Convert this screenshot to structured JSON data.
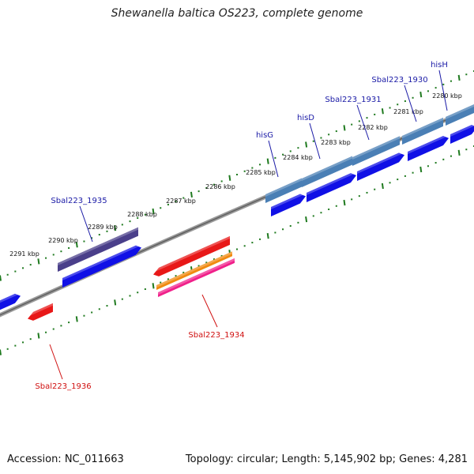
{
  "title": "Shewanella baltica OS223, complete genome",
  "footer": {
    "accession": "Accession: NC_011663",
    "topology": "Topology: circular; Length: 5,145,902 bp; Genes: 4,281"
  },
  "scale": {
    "ticks": [
      {
        "kb": 2280,
        "label": "2280 kbp"
      },
      {
        "kb": 2281,
        "label": "2281 kbp"
      },
      {
        "kb": 2282,
        "label": "2282 kbp"
      },
      {
        "kb": 2283,
        "label": "2283 kbp"
      },
      {
        "kb": 2284,
        "label": "2284 kbp"
      },
      {
        "kb": 2285,
        "label": "2285 kbp"
      },
      {
        "kb": 2286,
        "label": "2286 kbp"
      },
      {
        "kb": 2287,
        "label": "2287 kbp"
      },
      {
        "kb": 2288,
        "label": "2288 kbp"
      },
      {
        "kb": 2289,
        "label": "2289 kbp"
      },
      {
        "kb": 2290,
        "label": "2290 kbp"
      },
      {
        "kb": 2291,
        "label": "2291 kbp"
      }
    ]
  },
  "genes": [
    {
      "label": "hisH",
      "strand": "+"
    },
    {
      "label": "Sbal223_1930",
      "strand": "+"
    },
    {
      "label": "Sbal223_1931",
      "strand": "+"
    },
    {
      "label": "hisD",
      "strand": "+"
    },
    {
      "label": "hisG",
      "strand": "+"
    },
    {
      "label": "Sbal223_1935",
      "strand": "+"
    },
    {
      "label": "Sbal223_1934",
      "strand": "-"
    },
    {
      "label": "Sbal223_1936",
      "strand": "-"
    }
  ],
  "colors": {
    "forward_cds": "#1010e6",
    "forward_gene": "#4a7fb5",
    "forward_gene_dark": "#4a3f8a",
    "reverse_cds": "#e81818",
    "reverse_misc": "#f08a10",
    "reverse_mrna": "#f0208a",
    "backbone": "#8a8a8a",
    "tick": "#1f7a1f",
    "label_pos": "#1a1aa6",
    "label_neg": "#d01010"
  }
}
